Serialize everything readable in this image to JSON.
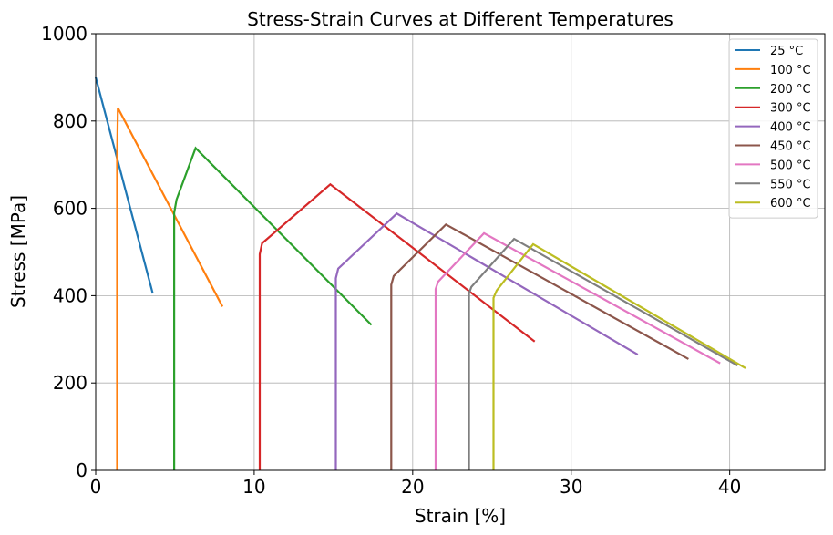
{
  "chart_data": {
    "type": "line",
    "title": "Stress-Strain Curves at Different Temperatures",
    "xlabel": "Strain [%]",
    "ylabel": "Stress [MPa]",
    "xlim": [
      0,
      46
    ],
    "ylim": [
      0,
      1000
    ],
    "xticks": [
      0,
      10,
      20,
      30,
      40
    ],
    "yticks": [
      0,
      200,
      400,
      600,
      800,
      1000
    ],
    "xtick_labels": [
      "0",
      "10",
      "20",
      "30",
      "40"
    ],
    "ytick_labels": [
      "0",
      "200",
      "400",
      "600",
      "800",
      "1000"
    ],
    "grid": true,
    "legend_position": "top-right",
    "series": [
      {
        "name": "25 °C",
        "color": "#1f77b4",
        "x": [
          0,
          3.6
        ],
        "y": [
          900,
          405
        ]
      },
      {
        "name": "100 °C",
        "color": "#ff7f0e",
        "x": [
          1.35,
          1.35,
          1.4,
          8.0
        ],
        "y": [
          0,
          720,
          830,
          375
        ]
      },
      {
        "name": "200 °C",
        "color": "#2ca02c",
        "x": [
          4.95,
          4.95,
          5.1,
          6.3,
          17.4
        ],
        "y": [
          0,
          590,
          620,
          738,
          333
        ]
      },
      {
        "name": "300 °C",
        "color": "#d62728",
        "x": [
          10.35,
          10.35,
          10.5,
          14.8,
          27.7
        ],
        "y": [
          0,
          495,
          520,
          655,
          295
        ]
      },
      {
        "name": "400 °C",
        "color": "#9467bd",
        "x": [
          15.15,
          15.15,
          15.3,
          19.0,
          34.2
        ],
        "y": [
          0,
          440,
          462,
          588,
          265
        ]
      },
      {
        "name": "450 °C",
        "color": "#8c564b",
        "x": [
          18.65,
          18.65,
          18.8,
          22.1,
          37.4
        ],
        "y": [
          0,
          425,
          445,
          563,
          255
        ]
      },
      {
        "name": "500 °C",
        "color": "#e377c2",
        "x": [
          21.45,
          21.45,
          21.6,
          24.5,
          39.4
        ],
        "y": [
          0,
          415,
          432,
          543,
          245
        ]
      },
      {
        "name": "550 °C",
        "color": "#7f7f7f",
        "x": [
          23.55,
          23.55,
          23.7,
          26.4,
          40.5
        ],
        "y": [
          0,
          405,
          420,
          530,
          240
        ]
      },
      {
        "name": "600 °C",
        "color": "#bcbd22",
        "x": [
          25.1,
          25.1,
          25.3,
          27.6,
          41.0
        ],
        "y": [
          0,
          395,
          412,
          518,
          234
        ]
      }
    ]
  }
}
